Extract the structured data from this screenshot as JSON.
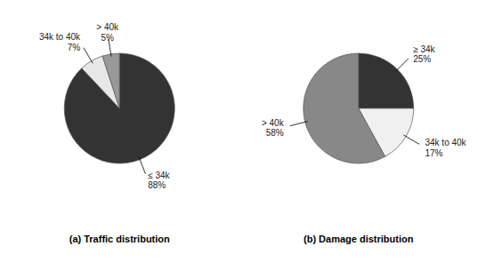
{
  "chart_data": [
    {
      "type": "pie",
      "title": "(a) Traffic distribution",
      "categories": [
        "≤ 34k",
        "34k to 40k",
        "> 40k"
      ],
      "values": [
        88,
        7,
        5
      ],
      "value_labels": [
        "88%",
        "7%",
        "5%"
      ],
      "colors": [
        "#333333",
        "#e8e8e8",
        "#999999"
      ],
      "data_labels": true
    },
    {
      "type": "pie",
      "title": "(b) Damage distribution",
      "categories": [
        "≥ 34k",
        "34k to 40k",
        "> 40k"
      ],
      "values": [
        25,
        17,
        58
      ],
      "value_labels": [
        "25%",
        "17%",
        "58%"
      ],
      "colors": [
        "#333333",
        "#f0f0f0",
        "#888888"
      ],
      "data_labels": true
    }
  ]
}
